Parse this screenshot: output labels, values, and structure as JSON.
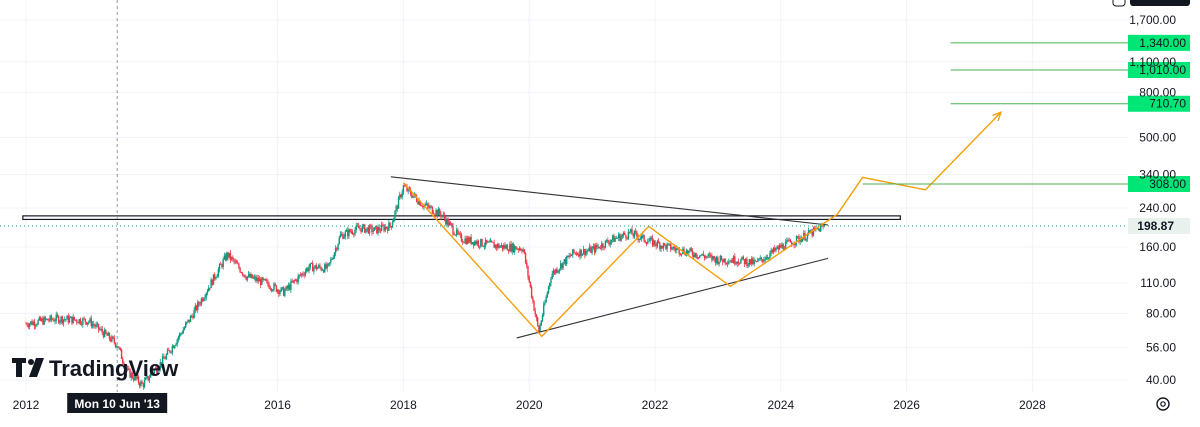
{
  "chart_data": {
    "type": "candlestick",
    "title": "",
    "xlabel": "",
    "ylabel": "",
    "y_scale": "log",
    "ylim": [
      36,
      2000
    ],
    "xlim": [
      2011.95,
      2029.2
    ],
    "x_ticks": [
      "2012",
      "2016",
      "2018",
      "2020",
      "2022",
      "2024",
      "2026",
      "2028"
    ],
    "y_ticks": [
      "1,700.00",
      "1,100.00",
      "800.00",
      "500.00",
      "340.00",
      "240.00",
      "160.00",
      "110.00",
      "80.00",
      "56.00",
      "40.00"
    ],
    "current_price": {
      "label": "198.87",
      "value": 198.87,
      "color": "#089981"
    },
    "target_levels": [
      {
        "label": "1,340.00",
        "value": 1340,
        "from_x": 2026.7,
        "color": "#00e676"
      },
      {
        "label": "1,010.00",
        "value": 1010,
        "from_x": 2026.7,
        "color": "#00e676"
      },
      {
        "label": "710.70",
        "value": 710.7,
        "from_x": 2026.7,
        "color": "#00e676"
      },
      {
        "label": "308.00",
        "value": 308,
        "from_x": 2025.3,
        "color": "#00e676"
      }
    ],
    "resistance_band": {
      "low": 213,
      "high": 221,
      "from_x": 2011.95,
      "to_x": 2025.9
    },
    "triangle": {
      "color": "#333333",
      "upper": [
        [
          2017.8,
          332
        ],
        [
          2024.75,
          201
        ]
      ],
      "lower": [
        [
          2019.8,
          62
        ],
        [
          2024.75,
          142
        ]
      ]
    },
    "wave_path": {
      "color": "#f59e0b",
      "points": [
        [
          2018.0,
          312
        ],
        [
          2020.2,
          63
        ],
        [
          2021.9,
          198
        ],
        [
          2023.2,
          106
        ],
        [
          2024.9,
          225
        ],
        [
          2025.3,
          330
        ],
        [
          2026.3,
          290
        ],
        [
          2027.5,
          650
        ]
      ],
      "arrow_end": true
    },
    "price_series": {
      "up_color": "#089981",
      "down_color": "#f23645",
      "anchors": [
        [
          2012.0,
          72
        ],
        [
          2012.5,
          76
        ],
        [
          2013.0,
          74
        ],
        [
          2013.45,
          58
        ],
        [
          2013.6,
          44
        ],
        [
          2013.85,
          38
        ],
        [
          2014.2,
          50
        ],
        [
          2014.6,
          75
        ],
        [
          2014.9,
          105
        ],
        [
          2015.2,
          148
        ],
        [
          2015.5,
          118
        ],
        [
          2015.8,
          110
        ],
        [
          2016.1,
          100
        ],
        [
          2016.5,
          130
        ],
        [
          2016.8,
          128
        ],
        [
          2017.0,
          180
        ],
        [
          2017.3,
          195
        ],
        [
          2017.55,
          190
        ],
        [
          2017.8,
          200
        ],
        [
          2018.0,
          300
        ],
        [
          2018.3,
          250
        ],
        [
          2018.6,
          225
        ],
        [
          2018.9,
          175
        ],
        [
          2019.3,
          165
        ],
        [
          2019.6,
          160
        ],
        [
          2019.9,
          158
        ],
        [
          2020.15,
          66
        ],
        [
          2020.35,
          120
        ],
        [
          2020.7,
          150
        ],
        [
          2021.0,
          155
        ],
        [
          2021.3,
          172
        ],
        [
          2021.6,
          185
        ],
        [
          2021.9,
          170
        ],
        [
          2022.2,
          160
        ],
        [
          2022.6,
          150
        ],
        [
          2023.0,
          140
        ],
        [
          2023.3,
          140
        ],
        [
          2023.6,
          135
        ],
        [
          2024.0,
          160
        ],
        [
          2024.4,
          180
        ],
        [
          2024.7,
          198.87
        ]
      ]
    },
    "crosshair": {
      "x": 2013.45,
      "label": "Mon 10 Jun '13"
    }
  },
  "branding": {
    "logo_text": "TradingView",
    "logo_mark": "tv-logo"
  }
}
